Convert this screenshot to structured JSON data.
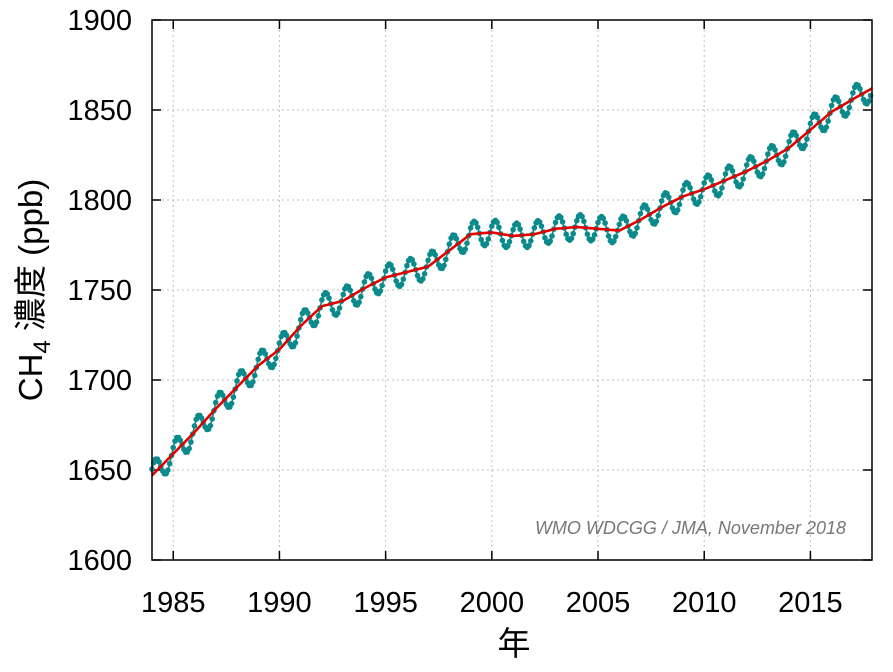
{
  "chart_data": {
    "type": "line",
    "xlabel": "年",
    "ylabel_prefix": "CH",
    "ylabel_subscript": "4",
    "ylabel_suffix": " 濃度 (ppb)",
    "annotation": "WMO WDCGG / JMA, November 2018",
    "xlim": [
      1984,
      2017.9
    ],
    "ylim": [
      1600,
      1900
    ],
    "xticks": [
      1985,
      1990,
      1995,
      2000,
      2005,
      2010,
      2015
    ],
    "yticks": [
      1600,
      1650,
      1700,
      1750,
      1800,
      1850,
      1900
    ],
    "grid": true,
    "colors": {
      "monthly": "#0a8a8a",
      "trend": "#e00000"
    },
    "trend": {
      "x": [
        1984.0,
        1985.0,
        1986.0,
        1987.0,
        1988.0,
        1989.0,
        1990.0,
        1991.0,
        1992.0,
        1993.0,
        1994.0,
        1995.0,
        1996.0,
        1997.0,
        1998.0,
        1999.0,
        2000.0,
        2001.0,
        2002.0,
        2003.0,
        2004.0,
        2005.0,
        2006.0,
        2007.0,
        2008.0,
        2009.0,
        2010.0,
        2011.0,
        2012.0,
        2013.0,
        2014.0,
        2015.0,
        2016.0,
        2017.0,
        2017.9
      ],
      "y": [
        1647,
        1659,
        1671,
        1684,
        1696,
        1708,
        1717,
        1730,
        1741,
        1744,
        1751,
        1757,
        1760,
        1763,
        1772,
        1781,
        1782,
        1780,
        1781,
        1784,
        1785,
        1784,
        1783,
        1789,
        1796,
        1802,
        1806,
        1811,
        1816,
        1822,
        1829,
        1839,
        1849,
        1856,
        1862
      ]
    },
    "monthly_series": {
      "name": "",
      "seasonal_amplitude": 7,
      "phase_peak_month": 2
    }
  }
}
